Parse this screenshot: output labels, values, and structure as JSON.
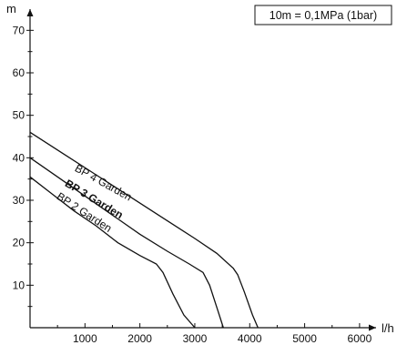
{
  "chart_data": {
    "type": "line",
    "title": "",
    "xlabel": "l/h",
    "ylabel": "m",
    "xlim": [
      0,
      6300
    ],
    "ylim": [
      0,
      75
    ],
    "x_ticks": [
      1000,
      2000,
      3000,
      4000,
      5000,
      6000
    ],
    "y_ticks": [
      10,
      20,
      30,
      40,
      50,
      60,
      70
    ],
    "x_minor_step": 500,
    "y_minor_step": 5,
    "grid": false,
    "legend": "none",
    "annotation": "10m = 0,1MPa (1bar)",
    "series": [
      {
        "name": "BP 4 Garden",
        "bold": false,
        "label_at": [
          4200,
          37
        ],
        "label_angle": -29,
        "points": [
          [
            0,
            46
          ],
          [
            600,
            41
          ],
          [
            1200,
            36
          ],
          [
            1800,
            31
          ],
          [
            2400,
            26
          ],
          [
            3000,
            21
          ],
          [
            3400,
            17.5
          ],
          [
            3700,
            14
          ],
          [
            3780,
            12.5
          ],
          [
            3900,
            8.5
          ],
          [
            4050,
            3
          ],
          [
            4150,
            0
          ]
        ]
      },
      {
        "name": "BP 3 Garden",
        "bold": true,
        "label_at": [
          4020,
          33.5
        ],
        "label_angle": -31,
        "points": [
          [
            0,
            40
          ],
          [
            500,
            35.5
          ],
          [
            1000,
            31
          ],
          [
            1500,
            26.5
          ],
          [
            2000,
            22
          ],
          [
            2500,
            18
          ],
          [
            2900,
            15
          ],
          [
            3150,
            13
          ],
          [
            3270,
            10
          ],
          [
            3420,
            4
          ],
          [
            3520,
            0
          ]
        ]
      },
      {
        "name": "BP 2 Garden",
        "bold": false,
        "label_at": [
          3870,
          30.5
        ],
        "label_angle": -33,
        "points": [
          [
            0,
            35.5
          ],
          [
            400,
            31.5
          ],
          [
            800,
            27.5
          ],
          [
            1200,
            24
          ],
          [
            1600,
            20
          ],
          [
            2000,
            17
          ],
          [
            2300,
            15
          ],
          [
            2420,
            13
          ],
          [
            2600,
            8
          ],
          [
            2800,
            3
          ],
          [
            3000,
            0
          ]
        ]
      }
    ]
  }
}
